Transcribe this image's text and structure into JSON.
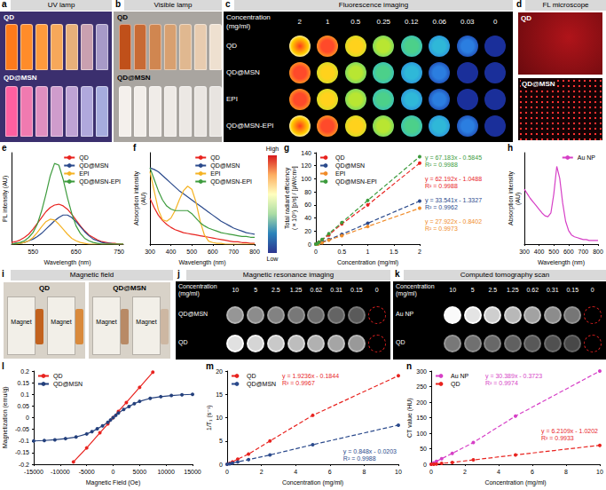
{
  "panels": {
    "a": {
      "letter": "a",
      "title": "UV lamp",
      "labels": [
        "QD",
        "QD@MSN"
      ]
    },
    "b": {
      "letter": "b",
      "title": "Visible lamp",
      "labels": [
        "QD",
        "QD@MSN"
      ]
    },
    "c": {
      "letter": "c",
      "title": "Fluorescence imaging",
      "header": "Concentration (mg/ml)",
      "columns": [
        2,
        1,
        0.5,
        0.25,
        0.12,
        0.06,
        0.03,
        0
      ],
      "rows": [
        "QD",
        "QD@MSN",
        "EPI",
        "QD@MSN-EPI"
      ]
    },
    "d": {
      "letter": "d",
      "title": "FL microscope",
      "labels": [
        "QD",
        "QD@MSN"
      ]
    },
    "color_scale": {
      "high": "High",
      "low": "Low"
    },
    "i": {
      "letter": "i",
      "title": "Magnetic field",
      "groups": [
        {
          "label": "QD",
          "tags": [
            "Magnet",
            "Magnet"
          ]
        },
        {
          "label": "QD@MSN",
          "tags": [
            "Magnet",
            "Magnet"
          ]
        }
      ]
    },
    "j": {
      "letter": "j",
      "title": "Magnetic resonance imaging",
      "header": "Concentration (mg/ml)",
      "columns": [
        10,
        5,
        2.5,
        1.25,
        0.62,
        0.31,
        0.15,
        0
      ],
      "rows": [
        "QD@MSN",
        "QD"
      ]
    },
    "k": {
      "letter": "k",
      "title": "Computed tomography scan",
      "header": "Concentration (mg/ml)",
      "columns": [
        10,
        5,
        2.5,
        1.25,
        0.62,
        0.31,
        0.15,
        0
      ],
      "rows": [
        "Au NP",
        "QD"
      ]
    }
  },
  "chart_data": [
    {
      "panel": "e",
      "type": "line",
      "x_label": "Wavelength (nm)",
      "y_label": "PL intensity (AU)",
      "x": [
        500,
        510,
        520,
        530,
        540,
        550,
        560,
        570,
        580,
        590,
        600,
        610,
        620,
        630,
        640,
        650,
        660,
        670,
        680,
        690,
        700,
        710,
        720,
        730,
        740,
        750,
        760
      ],
      "series": [
        {
          "name": "QD",
          "color": "#e8231f",
          "values": [
            2,
            3,
            5,
            8,
            12,
            18,
            25,
            32,
            39,
            44,
            47,
            48,
            46,
            42,
            36,
            29,
            22,
            16,
            11,
            8,
            5,
            3,
            2,
            1,
            1,
            0,
            0
          ]
        },
        {
          "name": "QD@MSN",
          "color": "#2b4a8c",
          "values": [
            0,
            1,
            1,
            2,
            4,
            6,
            9,
            13,
            18,
            23,
            28,
            32,
            35,
            35,
            32,
            27,
            21,
            15,
            10,
            6,
            4,
            2,
            1,
            1,
            0,
            0,
            0
          ]
        },
        {
          "name": "EPI",
          "color": "#f5b324",
          "values": [
            0,
            0,
            1,
            2,
            4,
            8,
            14,
            21,
            27,
            30,
            29,
            24,
            18,
            12,
            7,
            4,
            2,
            1,
            0,
            0,
            0,
            0,
            0,
            0,
            0,
            0,
            0
          ]
        },
        {
          "name": "QD@MSN-EPI",
          "color": "#3d9b3d",
          "values": [
            0,
            1,
            2,
            4,
            8,
            14,
            24,
            40,
            60,
            82,
            97,
            95,
            78,
            56,
            37,
            22,
            13,
            7,
            4,
            2,
            1,
            0,
            0,
            0,
            0,
            0,
            0
          ]
        }
      ],
      "xlim": [
        500,
        760
      ],
      "xticks": [
        550,
        650,
        750
      ],
      "ylim": [
        0,
        110
      ],
      "yticks": [],
      "tick_labels": "x",
      "legend": "top-right",
      "grid": false,
      "marker": "none",
      "line_style": "solid"
    },
    {
      "panel": "f",
      "type": "line",
      "x_label": "Wavelength (nm)",
      "y_label": "Absorption intensity (AU)",
      "x": [
        300,
        320,
        340,
        360,
        380,
        400,
        420,
        440,
        460,
        480,
        500,
        520,
        540,
        560,
        580,
        600,
        620,
        640,
        660,
        680,
        700,
        720,
        740,
        760,
        780,
        800
      ],
      "series": [
        {
          "name": "QD",
          "color": "#e8231f",
          "values": [
            60,
            48,
            38,
            31,
            26,
            22,
            19,
            17,
            15,
            14,
            13,
            12,
            11,
            10,
            9,
            8,
            7,
            6,
            5,
            4,
            3,
            3,
            2,
            2,
            1,
            1
          ]
        },
        {
          "name": "QD@MSN",
          "color": "#2b4a8c",
          "values": [
            100,
            98,
            95,
            90,
            85,
            80,
            75,
            70,
            66,
            62,
            58,
            54,
            50,
            46,
            42,
            38,
            34,
            30,
            27,
            24,
            21,
            19,
            17,
            15,
            14,
            13
          ]
        },
        {
          "name": "EPI",
          "color": "#f5b324",
          "values": [
            95,
            70,
            45,
            32,
            30,
            34,
            44,
            58,
            70,
            76,
            72,
            55,
            30,
            12,
            4,
            2,
            1,
            1,
            0,
            0,
            0,
            0,
            0,
            0,
            0,
            0
          ]
        },
        {
          "name": "QD@MSN-EPI",
          "color": "#3d9b3d",
          "values": [
            100,
            85,
            70,
            58,
            50,
            46,
            44,
            44,
            44,
            44,
            40,
            34,
            28,
            24,
            21,
            19,
            17,
            15,
            14,
            13,
            12,
            11,
            10,
            10,
            9,
            9
          ]
        }
      ],
      "xlim": [
        300,
        800
      ],
      "xticks": [
        300,
        400,
        500,
        600,
        700,
        800
      ],
      "ylim": [
        0,
        120
      ],
      "yticks": [],
      "tick_labels": "x",
      "legend": "top-right",
      "grid": false,
      "marker": "none",
      "line_style": "solid"
    },
    {
      "panel": "g",
      "type": "scatter",
      "x_label": "Concentration (mg/ml)",
      "y_label": "Total radiant efficiency (×10⁹) [p/s] / [μW/cm²]",
      "x": [
        0,
        0.03,
        0.06,
        0.12,
        0.25,
        0.5,
        1,
        2
      ],
      "series": [
        {
          "name": "QD",
          "color": "#e8231f",
          "values": [
            0,
            1,
            3,
            6,
            14,
            31,
            60,
            124
          ],
          "annotation": [
            "y = 62.192x - 1.0488",
            "R² = 0.9988"
          ]
        },
        {
          "name": "QD@MSN",
          "color": "#2b4a8c",
          "values": [
            0,
            0,
            1,
            3,
            7,
            15,
            32,
            66
          ],
          "annotation": [
            "y = 33.541x - 1.3327",
            "R² = 0.9962"
          ]
        },
        {
          "name": "EPI",
          "color": "#f08c2a",
          "values": [
            0,
            0,
            1,
            2,
            6,
            13,
            27,
            55
          ],
          "annotation": [
            "y = 27.922x - 0.8402",
            "R² = 0.9973"
          ]
        },
        {
          "name": "QD@MSN-EPI",
          "color": "#3d9b3d",
          "values": [
            0,
            1,
            3,
            7,
            16,
            33,
            67,
            134
          ],
          "annotation": [
            "y = 67.183x - 0.5845",
            "R² = 0.9988"
          ]
        }
      ],
      "xlim": [
        0,
        2
      ],
      "xticks": [
        0,
        0.5,
        1,
        1.5,
        2
      ],
      "ylim": [
        0,
        140
      ],
      "yticks": [
        0,
        20,
        40,
        60,
        80,
        100,
        120,
        140
      ],
      "legend": "top-left",
      "grid": false,
      "marker": "circle",
      "line_style": "dashed"
    },
    {
      "panel": "h",
      "type": "line",
      "x_label": "Wavelength (nm)",
      "y_label": "Absorption intensity (AU)",
      "x": [
        300,
        320,
        340,
        360,
        380,
        400,
        420,
        440,
        460,
        480,
        500,
        520,
        540,
        560,
        580,
        600,
        620,
        640,
        660,
        680,
        700,
        720,
        740,
        760,
        780,
        800
      ],
      "series": [
        {
          "name": "Au NP",
          "color": "#d63fc6",
          "values": [
            60,
            55,
            50,
            46,
            42,
            38,
            34,
            31,
            30,
            34,
            55,
            85,
            72,
            45,
            25,
            15,
            10,
            8,
            7,
            6,
            5,
            5,
            4,
            4,
            4,
            4
          ]
        }
      ],
      "xlim": [
        300,
        800
      ],
      "xticks": [
        300,
        400,
        500,
        600,
        700,
        800
      ],
      "ylim": [
        0,
        100
      ],
      "yticks": [],
      "tick_labels": "x",
      "legend": "top-right",
      "grid": false,
      "marker": "none",
      "line_style": "solid"
    },
    {
      "panel": "l",
      "type": "line",
      "x_label": "Magnetic Field (Oe)",
      "y_label": "Magnetization (emu/g)",
      "series": [
        {
          "name": "QD",
          "color": "#e8231f",
          "x": [
            -7500,
            -5000,
            -2500,
            -1000,
            0,
            1000,
            2500,
            5000,
            7500
          ],
          "values": [
            -0.19,
            -0.13,
            -0.065,
            -0.027,
            0,
            0.027,
            0.065,
            0.13,
            0.195
          ]
        },
        {
          "name": "QD@MSN",
          "color": "#24407c",
          "x": [
            -15000,
            -13000,
            -11000,
            -9000,
            -7000,
            -5000,
            -4000,
            -3000,
            -2000,
            -1000,
            -500,
            0,
            500,
            1000,
            2000,
            3000,
            4000,
            5000,
            7000,
            9000,
            11000,
            13000,
            15000
          ],
          "values": [
            -0.1,
            -0.098,
            -0.095,
            -0.09,
            -0.083,
            -0.07,
            -0.06,
            -0.048,
            -0.035,
            -0.02,
            -0.01,
            0,
            0.01,
            0.02,
            0.035,
            0.048,
            0.06,
            0.07,
            0.083,
            0.09,
            0.095,
            0.098,
            0.1
          ]
        }
      ],
      "xlim": [
        -15000,
        15000
      ],
      "xticks": [
        -15000,
        -10000,
        -5000,
        0,
        5000,
        10000,
        15000
      ],
      "ylim": [
        -0.2,
        0.2
      ],
      "yticks": [
        -0.2,
        -0.15,
        -0.1,
        -0.05,
        0,
        0.05,
        0.1,
        0.15,
        0.2
      ],
      "legend": "top-left",
      "grid": false,
      "marker": "circle",
      "line_style": "solid"
    },
    {
      "panel": "m",
      "type": "scatter",
      "x_label": "Concentration (mg/ml)",
      "y_label": "1/T₁ (s⁻¹)",
      "x": [
        0,
        0.15,
        0.31,
        0.62,
        1.25,
        2.5,
        5,
        10
      ],
      "series": [
        {
          "name": "QD",
          "color": "#e8231f",
          "values": [
            0,
            0.2,
            0.5,
            1.1,
            2.2,
            5,
            10.5,
            19
          ],
          "annotation": [
            "y = 1.9236x - 0.1844",
            "R² = 0.9967"
          ]
        },
        {
          "name": "QD@MSN",
          "color": "#2b4a8c",
          "values": [
            0,
            0.1,
            0.25,
            0.5,
            1,
            2,
            4.2,
            8.4
          ],
          "annotation": [
            "y = 0.848x - 0.0203",
            "R² = 0.9988"
          ]
        }
      ],
      "xlim": [
        0,
        10
      ],
      "xticks": [
        0,
        2,
        4,
        6,
        8,
        10
      ],
      "ylim": [
        0,
        20
      ],
      "yticks": [
        0,
        5,
        10,
        15,
        20
      ],
      "legend": "top-left",
      "grid": false,
      "marker": "circle",
      "line_style": "dashed"
    },
    {
      "panel": "n",
      "type": "scatter",
      "x_label": "Concentration (mg/ml)",
      "y_label": "CT value (HU)",
      "x": [
        0,
        0.15,
        0.31,
        0.62,
        1.25,
        2.5,
        5,
        10
      ],
      "series": [
        {
          "name": "Au NP",
          "color": "#d63fc6",
          "values": [
            0,
            4,
            9,
            18,
            35,
            70,
            155,
            300
          ],
          "annotation": [
            "y = 30.389x - 0.3723",
            "R² = 0.9974"
          ]
        },
        {
          "name": "QD",
          "color": "#e8231f",
          "values": [
            0,
            0,
            1,
            3,
            6,
            14,
            30,
            61
          ],
          "annotation": [
            "y = 6.2109x - 1.0202",
            "R² = 0.9933"
          ]
        }
      ],
      "xlim": [
        0,
        10
      ],
      "xticks": [
        0,
        2,
        4,
        6,
        8,
        10
      ],
      "ylim": [
        0,
        300
      ],
      "yticks": [
        0,
        50,
        100,
        150,
        200,
        250,
        300
      ],
      "legend": "top-left",
      "grid": false,
      "marker": "circle",
      "line_style": "dashed"
    }
  ]
}
